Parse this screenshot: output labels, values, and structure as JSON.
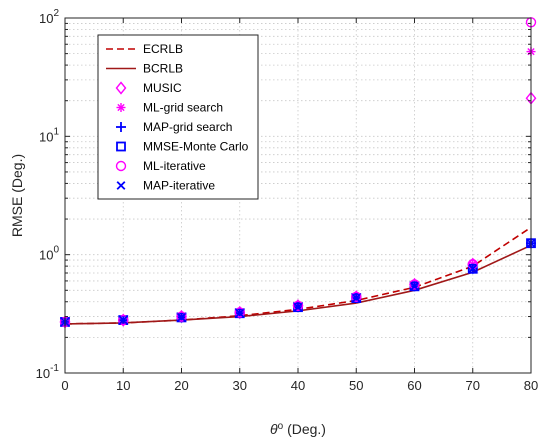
{
  "chart_data": {
    "type": "line",
    "title": "",
    "xlabel_symbol": "θ",
    "xlabel_superscript": "o",
    "xlabel_rest": " (Deg.)",
    "ylabel": "RMSE (Deg.)",
    "xlim": [
      0,
      80
    ],
    "ylim": [
      0.1,
      100
    ],
    "yscale": "log",
    "grid": true,
    "legend_position": "top-left",
    "x_ticks": [
      0,
      10,
      20,
      30,
      40,
      50,
      60,
      70,
      80
    ],
    "y_ticks": [
      {
        "value": 0.1,
        "base": "10",
        "exp": "-1"
      },
      {
        "value": 1,
        "base": "10",
        "exp": "0"
      },
      {
        "value": 10,
        "base": "10",
        "exp": "1"
      },
      {
        "value": 100,
        "base": "10",
        "exp": "2"
      }
    ],
    "series": [
      {
        "name": "ECRLB",
        "style": "dashed-line",
        "color": "#c00000",
        "x": [
          0,
          10,
          20,
          30,
          40,
          50,
          60,
          70,
          80
        ],
        "y": [
          0.26,
          0.265,
          0.28,
          0.305,
          0.345,
          0.41,
          0.53,
          0.8,
          1.7
        ]
      },
      {
        "name": "BCRLB",
        "style": "solid-line",
        "color": "#a01818",
        "x": [
          0,
          10,
          20,
          30,
          40,
          50,
          60,
          70,
          80
        ],
        "y": [
          0.26,
          0.265,
          0.28,
          0.3,
          0.335,
          0.39,
          0.5,
          0.71,
          1.2
        ]
      },
      {
        "name": "MUSIC",
        "marker": "diamond",
        "color": "#ff00ff",
        "x": [
          0,
          10,
          20,
          30,
          40,
          50,
          60,
          70,
          80
        ],
        "y": [
          0.27,
          0.28,
          0.3,
          0.325,
          0.37,
          0.44,
          0.56,
          0.83,
          21
        ]
      },
      {
        "name": "ML-grid search",
        "marker": "asterisk",
        "color": "#ff00ff",
        "x": [
          0,
          10,
          20,
          30,
          40,
          50,
          60,
          70,
          80
        ],
        "y": [
          0.27,
          0.28,
          0.3,
          0.325,
          0.37,
          0.44,
          0.56,
          0.83,
          52
        ]
      },
      {
        "name": "MAP-grid search",
        "marker": "plus",
        "color": "#0000ff",
        "x": [
          0,
          10,
          20,
          30,
          40,
          50,
          60,
          70,
          80
        ],
        "y": [
          0.27,
          0.28,
          0.295,
          0.32,
          0.36,
          0.43,
          0.54,
          0.76,
          1.25
        ]
      },
      {
        "name": "MMSE-Monte Carlo",
        "marker": "square",
        "color": "#0000ff",
        "x": [
          0,
          10,
          20,
          30,
          40,
          50,
          60,
          70,
          80
        ],
        "y": [
          0.27,
          0.28,
          0.295,
          0.32,
          0.36,
          0.43,
          0.54,
          0.76,
          1.25
        ]
      },
      {
        "name": "ML-iterative",
        "marker": "circle",
        "color": "#ff00ff",
        "x": [
          0,
          10,
          20,
          30,
          40,
          50,
          60,
          70,
          80
        ],
        "y": [
          0.27,
          0.28,
          0.3,
          0.325,
          0.37,
          0.44,
          0.56,
          0.83,
          92
        ]
      },
      {
        "name": "MAP-iterative",
        "marker": "x",
        "color": "#0000ff",
        "x": [
          0,
          10,
          20,
          30,
          40,
          50,
          60,
          70,
          80
        ],
        "y": [
          0.27,
          0.28,
          0.295,
          0.32,
          0.36,
          0.43,
          0.54,
          0.76,
          1.25
        ]
      }
    ]
  }
}
